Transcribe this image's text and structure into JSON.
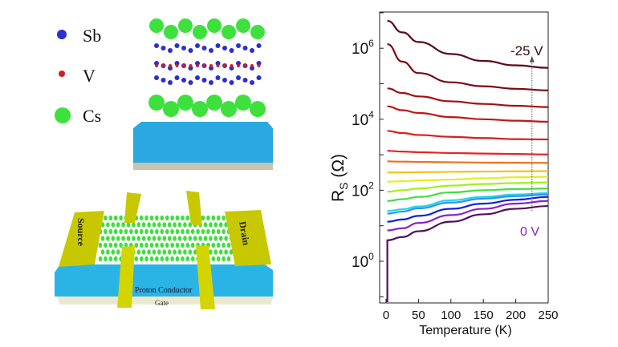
{
  "legend": [
    {
      "label": "Sb",
      "color": "#2a2fd0"
    },
    {
      "label": "V",
      "color": "#d02020"
    },
    {
      "label": "Cs",
      "color": "#3ee03e"
    }
  ],
  "device": {
    "source_label": "Source",
    "drain_label": "Drain",
    "proton_label": "Proton Conductor",
    "gate_label": "Gate",
    "colors": {
      "electrode": "#d4d400",
      "proton": "#2ab4e6",
      "gate": "#ece8d0"
    }
  },
  "chart_data": {
    "type": "line",
    "xlabel": "Temperature (K)",
    "ylabel_main": "R",
    "ylabel_sub": "S",
    "ylabel_unit": "(Ω)",
    "xlim": [
      -9,
      250
    ],
    "ylim_log10": [
      -1.17,
      7.02
    ],
    "yscale": "log",
    "x_ticks": [
      0,
      50,
      100,
      150,
      200,
      250
    ],
    "y_ticks": [
      {
        "base": "10",
        "exp": "6",
        "log": 6
      },
      {
        "base": "10",
        "exp": "4",
        "log": 4
      },
      {
        "base": "10",
        "exp": "2",
        "log": 2
      },
      {
        "base": "10",
        "exp": "0",
        "log": 0
      }
    ],
    "annotations": [
      {
        "text": "-25 V",
        "color": "#3a0a0a"
      },
      {
        "text": "0 V",
        "color": "#8a20c8"
      }
    ],
    "arrow_T": 225,
    "arrow_from_R": 26,
    "arrow_to_R": 550000,
    "x": [
      2,
      25,
      50,
      100,
      150,
      200,
      250
    ],
    "series": [
      {
        "color": "#5a0a14",
        "values": [
          5900000,
          2800000,
          1500000,
          690000,
          440000,
          330000,
          280000
        ]
      },
      {
        "color": "#7a0a10",
        "values": [
          1300000,
          420000,
          200000,
          110000,
          85000,
          72000,
          65000
        ]
      },
      {
        "color": "#a01010",
        "values": [
          74000,
          55000,
          44000,
          32000,
          27000,
          24000,
          22000
        ]
      },
      {
        "color": "#c01515",
        "values": [
          23000,
          18000,
          15000,
          11500,
          10000,
          9100,
          8500
        ]
      },
      {
        "color": "#e01a1a",
        "values": [
          4700,
          4100,
          3600,
          3200,
          2950,
          2750,
          2700
        ]
      },
      {
        "color": "#ee2020",
        "values": [
          1290,
          1230,
          1180,
          1120,
          1080,
          1050,
          1020
        ]
      },
      {
        "color": "#f07020",
        "values": [
          650,
          640,
          630,
          615,
          600,
          595,
          590
        ]
      },
      {
        "color": "#f5c020",
        "values": [
          316,
          318,
          322,
          330,
          336,
          342,
          347
        ]
      },
      {
        "color": "#e0f020",
        "values": [
          174,
          180,
          188,
          200,
          218,
          232,
          240
        ]
      },
      {
        "color": "#a0f020",
        "values": [
          91,
          100,
          112,
          135,
          150,
          160,
          166
        ]
      },
      {
        "color": "#40e040",
        "values": [
          50,
          56,
          65,
          87,
          100,
          108,
          112
        ]
      },
      {
        "color": "#20d8e8",
        "values": [
          26,
          29,
          35,
          52,
          65,
          76,
          83
        ]
      },
      {
        "color": "#3090ff",
        "values": [
          22,
          25,
          31,
          45,
          58,
          68,
          76
        ]
      },
      {
        "color": "#1020e0",
        "values": [
          13,
          15,
          19,
          30,
          42,
          54,
          65
        ]
      },
      {
        "color": "#8a20d0",
        "values": [
          7.4,
          8.5,
          12,
          20,
          30,
          42,
          50
        ]
      },
      {
        "color": "#50105a",
        "values": [
          3.9,
          4.8,
          7,
          13,
          21,
          30,
          36
        ]
      }
    ]
  }
}
